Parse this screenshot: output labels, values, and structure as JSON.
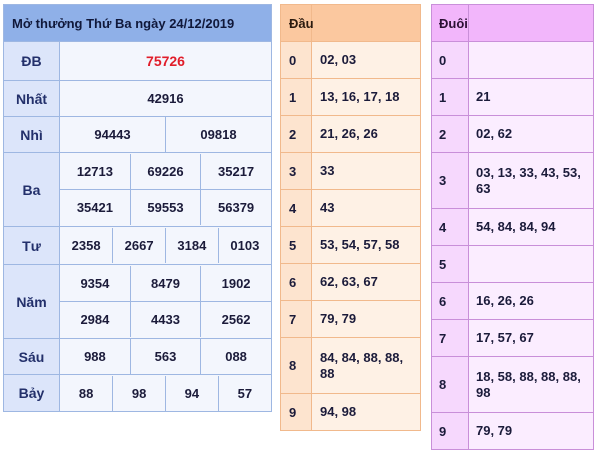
{
  "title": "Mở thưởng Thứ Ba ngày 24/12/2019",
  "prizes": {
    "db": {
      "label": "ĐB",
      "values": [
        "75726"
      ]
    },
    "nhat": {
      "label": "Nhất",
      "values": [
        "42916"
      ]
    },
    "nhi": {
      "label": "Nhì",
      "values": [
        "94443",
        "09818"
      ]
    },
    "ba": {
      "label": "Ba",
      "values": [
        "12713",
        "69226",
        "35217",
        "35421",
        "59553",
        "56379"
      ]
    },
    "tu": {
      "label": "Tư",
      "values": [
        "2358",
        "2667",
        "3184",
        "0103"
      ]
    },
    "nam": {
      "label": "Năm",
      "values": [
        "9354",
        "8479",
        "1902",
        "2984",
        "4433",
        "2562"
      ]
    },
    "sau": {
      "label": "Sáu",
      "values": [
        "988",
        "563",
        "088"
      ]
    },
    "bay": {
      "label": "Bảy",
      "values": [
        "88",
        "98",
        "94",
        "57"
      ]
    }
  },
  "dau": {
    "header": "Đầu",
    "rows": [
      {
        "digit": "0",
        "values": "02, 03"
      },
      {
        "digit": "1",
        "values": "13, 16, 17, 18"
      },
      {
        "digit": "2",
        "values": "21, 26, 26"
      },
      {
        "digit": "3",
        "values": "33"
      },
      {
        "digit": "4",
        "values": "43"
      },
      {
        "digit": "5",
        "values": "53, 54, 57, 58"
      },
      {
        "digit": "6",
        "values": "62, 63, 67"
      },
      {
        "digit": "7",
        "values": "79, 79"
      },
      {
        "digit": "8",
        "values": "84, 84, 88, 88, 88"
      },
      {
        "digit": "9",
        "values": "94, 98"
      }
    ]
  },
  "duoi": {
    "header": "Đuôi",
    "rows": [
      {
        "digit": "0",
        "values": ""
      },
      {
        "digit": "1",
        "values": "21"
      },
      {
        "digit": "2",
        "values": "02, 62"
      },
      {
        "digit": "3",
        "values": "03, 13, 33, 43, 53, 63"
      },
      {
        "digit": "4",
        "values": "54, 84, 84, 94"
      },
      {
        "digit": "5",
        "values": ""
      },
      {
        "digit": "6",
        "values": "16, 26, 26"
      },
      {
        "digit": "7",
        "values": "17, 57, 67"
      },
      {
        "digit": "8",
        "values": "18, 58, 88, 88, 88, 98"
      },
      {
        "digit": "9",
        "values": "79, 79"
      }
    ]
  },
  "colors": {
    "special_prize": "#e11d2a",
    "results_header": "#8fb0e8",
    "dau_header": "#fbc89f",
    "duoi_header": "#f2b6fb"
  }
}
